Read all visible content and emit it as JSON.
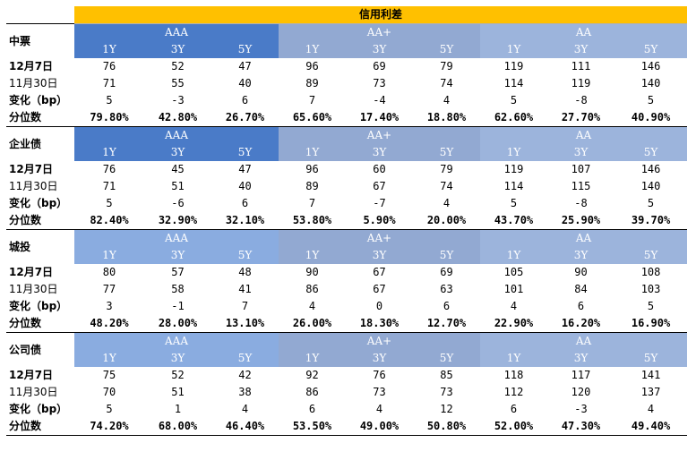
{
  "title": "信用利差",
  "group_labels": [
    "AAA",
    "AA+",
    "AA"
  ],
  "tenors": [
    "1Y",
    "3Y",
    "5Y"
  ],
  "row_labels": {
    "current": "12月7日",
    "previous": "11月30日",
    "change": "变化（bp）",
    "percentile": "分位数"
  },
  "sections": [
    {
      "name": "中票",
      "current": [
        "76",
        "52",
        "47",
        "96",
        "69",
        "79",
        "119",
        "111",
        "146"
      ],
      "previous": [
        "71",
        "55",
        "40",
        "89",
        "73",
        "74",
        "114",
        "119",
        "140"
      ],
      "change": [
        "5",
        "-3",
        "6",
        "7",
        "-4",
        "4",
        "5",
        "-8",
        "5"
      ],
      "percentile": [
        "79.80%",
        "42.80%",
        "26.70%",
        "65.60%",
        "17.40%",
        "18.80%",
        "62.60%",
        "27.70%",
        "40.90%"
      ]
    },
    {
      "name": "企业债",
      "current": [
        "76",
        "45",
        "47",
        "96",
        "60",
        "79",
        "119",
        "107",
        "146"
      ],
      "previous": [
        "71",
        "51",
        "40",
        "89",
        "67",
        "74",
        "114",
        "115",
        "140"
      ],
      "change": [
        "5",
        "-6",
        "6",
        "7",
        "-7",
        "4",
        "5",
        "-8",
        "5"
      ],
      "percentile": [
        "82.40%",
        "32.90%",
        "32.10%",
        "53.80%",
        "5.90%",
        "20.00%",
        "43.70%",
        "25.90%",
        "39.70%"
      ]
    },
    {
      "name": "城投",
      "current": [
        "80",
        "57",
        "48",
        "90",
        "67",
        "69",
        "105",
        "90",
        "108"
      ],
      "previous": [
        "77",
        "58",
        "41",
        "86",
        "67",
        "63",
        "101",
        "84",
        "103"
      ],
      "change": [
        "3",
        "-1",
        "7",
        "4",
        "0",
        "6",
        "4",
        "6",
        "5"
      ],
      "percentile": [
        "48.20%",
        "28.00%",
        "13.10%",
        "26.00%",
        "18.30%",
        "12.70%",
        "22.90%",
        "16.20%",
        "16.90%"
      ]
    },
    {
      "name": "公司债",
      "current": [
        "75",
        "52",
        "42",
        "92",
        "76",
        "85",
        "118",
        "117",
        "141"
      ],
      "previous": [
        "70",
        "51",
        "38",
        "86",
        "73",
        "73",
        "112",
        "120",
        "137"
      ],
      "change": [
        "5",
        "1",
        "4",
        "6",
        "4",
        "12",
        "6",
        "-3",
        "4"
      ],
      "percentile": [
        "74.20%",
        "68.00%",
        "46.40%",
        "53.50%",
        "49.00%",
        "50.80%",
        "52.00%",
        "47.30%",
        "49.40%"
      ]
    }
  ],
  "colors": {
    "title_bg": "#ffc000",
    "aaa_bg": "#4a7bc8",
    "aa_plus_bg": "#92a9d2",
    "aa_bg": "#9cb4dc"
  }
}
